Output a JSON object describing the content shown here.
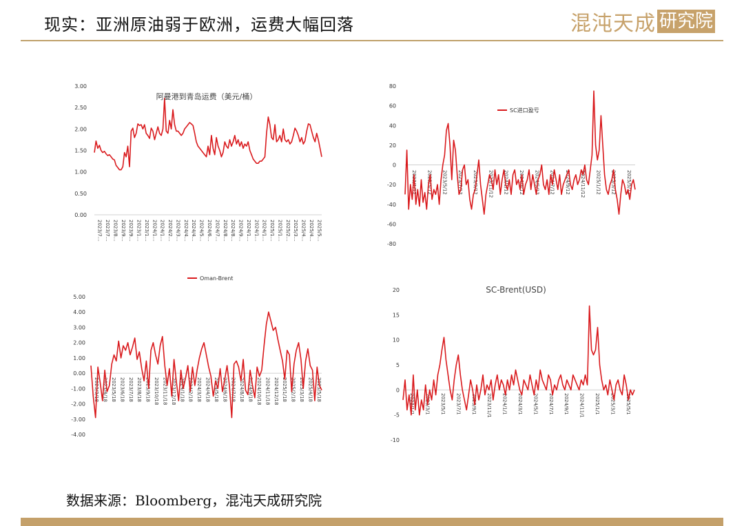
{
  "header": {
    "title": "现实：亚洲原油弱于欧洲，运费大幅回落",
    "logo_part1": "混沌天成",
    "logo_part2": "研究院"
  },
  "footer": {
    "source": "数据来源：Bloomberg，混沌天成研究院"
  },
  "colors": {
    "series": "#d9191c",
    "axis": "#d0d0d0",
    "gold": "#c4a06a"
  },
  "chart_data": [
    {
      "type": "line",
      "title": "阿曼港到青岛运费（美元/桶）",
      "ylim": [
        0,
        3
      ],
      "yticks": [
        "0.00",
        "0.50",
        "1.00",
        "1.50",
        "2.00",
        "2.50",
        "3.00"
      ],
      "xticks": [
        "2023/7…",
        "2023/7…",
        "2023/8…",
        "2023/9…",
        "2023/9…",
        "2023/1…",
        "2023/1…",
        "2024/1…",
        "2024/1…",
        "2024/2…",
        "2024/3…",
        "2024/4…",
        "2024/4…",
        "2024/5…",
        "2024/6…",
        "2024/7…",
        "2024/8…",
        "2024/8…",
        "2024/9…",
        "2024/1…",
        "2024/1…",
        "2024/1…",
        "2025/1…",
        "2025/1…",
        "2025/2…",
        "2025/3…",
        "2025/4…",
        "2025/4…",
        "2025/5…"
      ],
      "series": [
        {
          "values": [
            1.45,
            1.72,
            1.55,
            1.62,
            1.5,
            1.45,
            1.48,
            1.42,
            1.38,
            1.4,
            1.35,
            1.3,
            1.28,
            1.15,
            1.1,
            1.05,
            1.05,
            1.12,
            1.45,
            1.35,
            1.6,
            1.12,
            1.95,
            2.02,
            1.8,
            1.9,
            2.12,
            2.08,
            2.1,
            2.0,
            2.1,
            1.9,
            1.85,
            1.78,
            2.02,
            1.95,
            1.75,
            1.9,
            2.05,
            1.9,
            1.85,
            2.0,
            2.72,
            1.95,
            1.9,
            2.2,
            2.0,
            2.45,
            2.1,
            1.95,
            1.95,
            1.9,
            1.85,
            1.9,
            2.0,
            2.05,
            2.1,
            2.15,
            2.12,
            2.08,
            1.9,
            1.7,
            1.6,
            1.55,
            1.5,
            1.45,
            1.4,
            1.35,
            1.6,
            1.4,
            1.85,
            1.55,
            1.4,
            1.8,
            1.6,
            1.5,
            1.35,
            1.45,
            1.7,
            1.6,
            1.55,
            1.75,
            1.6,
            1.7,
            1.85,
            1.65,
            1.75,
            1.6,
            1.7,
            1.55,
            1.65,
            1.6,
            1.7,
            1.5,
            1.4,
            1.3,
            1.25,
            1.2,
            1.2,
            1.25,
            1.25,
            1.3,
            1.35,
            1.9,
            2.28,
            2.1,
            1.8,
            1.75,
            2.1,
            1.7,
            1.75,
            1.85,
            1.7,
            2.0,
            1.75,
            1.7,
            1.75,
            1.65,
            1.7,
            1.85,
            2.02,
            1.95,
            1.85,
            1.7,
            1.8,
            1.65,
            1.72,
            1.95,
            2.12,
            2.1,
            1.95,
            1.8,
            1.7,
            1.9,
            1.75,
            1.55,
            1.35
          ]
        }
      ]
    },
    {
      "type": "line",
      "title": "",
      "legend": "SC进口盈亏",
      "ylim": [
        -80,
        80
      ],
      "yticks": [
        "-80",
        "-60",
        "-40",
        "-20",
        "0",
        "20",
        "40",
        "60",
        "80"
      ],
      "xticks": [
        "2023/1/12",
        "2023/3/12",
        "2023/5/12",
        "2023/7/12",
        "2023/9/12",
        "2023/11/12",
        "2024/1/12",
        "2024/3/12",
        "2024/5/12",
        "2024/7/12",
        "2024/9/12",
        "2024/11/12",
        "2025/1/12",
        "2025/3/12",
        "2025/5/12"
      ],
      "series": [
        {
          "values": [
            -30,
            15,
            -45,
            -20,
            -35,
            -10,
            -40,
            -25,
            -42,
            -15,
            -38,
            -28,
            -45,
            -20,
            -10,
            -35,
            -25,
            -30,
            -20,
            -40,
            -15,
            0,
            10,
            35,
            42,
            20,
            -15,
            25,
            15,
            -10,
            -30,
            -25,
            -5,
            0,
            -20,
            -15,
            -35,
            -45,
            -30,
            -25,
            -10,
            5,
            -20,
            -35,
            -50,
            -30,
            -20,
            -10,
            -15,
            -25,
            -5,
            -20,
            -10,
            -30,
            -15,
            -5,
            -20,
            -25,
            -15,
            -30,
            -10,
            -5,
            -20,
            -15,
            -25,
            -10,
            -30,
            -20,
            -15,
            -5,
            -25,
            -10,
            -20,
            -30,
            -15,
            -10,
            0,
            -20,
            -25,
            -15,
            -30,
            -10,
            -20,
            -5,
            -15,
            -25,
            -10,
            -30,
            -20,
            -15,
            -10,
            -5,
            -20,
            -25,
            -15,
            -10,
            -20,
            -15,
            -5,
            -10,
            0,
            -15,
            -20,
            -5,
            10,
            75,
            20,
            5,
            15,
            50,
            20,
            -10,
            -25,
            -30,
            -20,
            -15,
            -5,
            -25,
            -35,
            -50,
            -30,
            -15,
            -20,
            -30,
            -25,
            -35,
            -20,
            -15,
            -25
          ]
        }
      ]
    },
    {
      "type": "line",
      "title": "",
      "legend": "Oman-Brent",
      "ylim": [
        -4,
        5
      ],
      "yticks": [
        "-4.00",
        "-3.00",
        "-2.00",
        "-1.00",
        "0.00",
        "1.00",
        "2.00",
        "3.00",
        "4.00",
        "5.00"
      ],
      "xticks": [
        "2023/3/18",
        "2023/4/18",
        "2023/5/18",
        "2023/6/18",
        "2023/7/18",
        "2023/8/18",
        "2023/9/18",
        "2023/10/18",
        "2023/11/18",
        "2023/12/18",
        "2024/1/18",
        "2024/2/18",
        "2024/3/18",
        "2024/4/18",
        "2024/5/18",
        "2024/6/18",
        "2024/7/18",
        "2024/8/18",
        "2024/9/18",
        "2024/10/18",
        "2024/11/18",
        "2024/12/18",
        "2025/1/18",
        "2025/2/18",
        "2025/3/18",
        "2025/4/18",
        "2025/5/18"
      ],
      "series": [
        {
          "values": [
            0.5,
            -1.5,
            -2.9,
            0.4,
            -0.6,
            -1.8,
            0.2,
            -1.2,
            -0.8,
            0.6,
            1.2,
            0.8,
            2.1,
            1.0,
            1.8,
            1.5,
            2.0,
            1.2,
            1.7,
            2.3,
            0.9,
            1.4,
            0.3,
            -0.5,
            0.8,
            -1.0,
            1.5,
            2.0,
            1.2,
            0.6,
            1.8,
            2.4,
            0.5,
            -0.8,
            0.3,
            -1.5,
            0.9,
            -0.5,
            -1.8,
            0.2,
            -1.0,
            -0.3,
            0.5,
            -1.2,
            0.4,
            -0.8,
            0.2,
            1.0,
            1.6,
            2.0,
            1.2,
            0.4,
            -0.2,
            -1.5,
            -0.5,
            -1.0,
            0.3,
            -1.2,
            -0.4,
            0.5,
            -0.8,
            -2.9,
            0.6,
            0.8,
            0.4,
            -0.5,
            0.9,
            -1.1,
            -1.4,
            0.2,
            -0.8,
            -1.6,
            0.4,
            -0.2,
            0.2,
            1.8,
            3.2,
            4.0,
            3.4,
            2.8,
            3.0,
            2.2,
            1.5,
            0.8,
            -0.4,
            1.5,
            1.2,
            -1.2,
            0.6,
            1.5,
            2.0,
            0.9,
            -1.0,
            0.8,
            1.6,
            0.5,
            0.2,
            -1.8,
            0.4,
            -0.8,
            -1.1
          ]
        }
      ]
    },
    {
      "type": "line",
      "title": "SC-Brent(USD)",
      "ylim": [
        -10,
        20
      ],
      "yticks": [
        "-10",
        "-5",
        "0",
        "5",
        "10",
        "15",
        "20"
      ],
      "xticks": [
        "2023/1/1",
        "2023/3/1",
        "2023/5/1",
        "2023/7/1",
        "2023/9/1",
        "2023/11/1",
        "2024/1/1",
        "2024/3/1",
        "2024/5/1",
        "2024/7/1",
        "2024/9/1",
        "2024/11/1",
        "2025/1/1",
        "2025/3/1",
        "2025/5/1"
      ],
      "series": [
        {
          "values": [
            -2,
            2,
            -4,
            -1,
            -5,
            3,
            -4,
            0,
            -5,
            -2,
            -4,
            1,
            -3,
            0,
            -2,
            2,
            -1,
            3,
            5,
            8,
            10.5,
            6,
            3,
            0,
            -2,
            2,
            5,
            7,
            3,
            0,
            -2,
            -4,
            -1,
            2,
            0,
            -3,
            1,
            -2,
            0,
            3,
            -1,
            1,
            0,
            2,
            -2,
            1,
            3,
            0,
            2,
            1,
            -1,
            2,
            0,
            3,
            1,
            4,
            2,
            0,
            -1,
            2,
            1,
            0,
            3,
            1,
            -1,
            2,
            0,
            4,
            2,
            1,
            0,
            3,
            2,
            -1,
            1,
            0,
            2,
            3,
            1,
            0,
            2,
            1,
            0,
            3,
            2,
            1,
            0,
            2,
            1,
            3,
            1,
            16.8,
            8,
            7,
            8,
            12.5,
            5,
            2,
            0,
            1,
            -1,
            2,
            0,
            -2,
            1,
            2,
            0,
            -1,
            3,
            1,
            -2,
            0,
            -1,
            0
          ]
        }
      ]
    }
  ]
}
